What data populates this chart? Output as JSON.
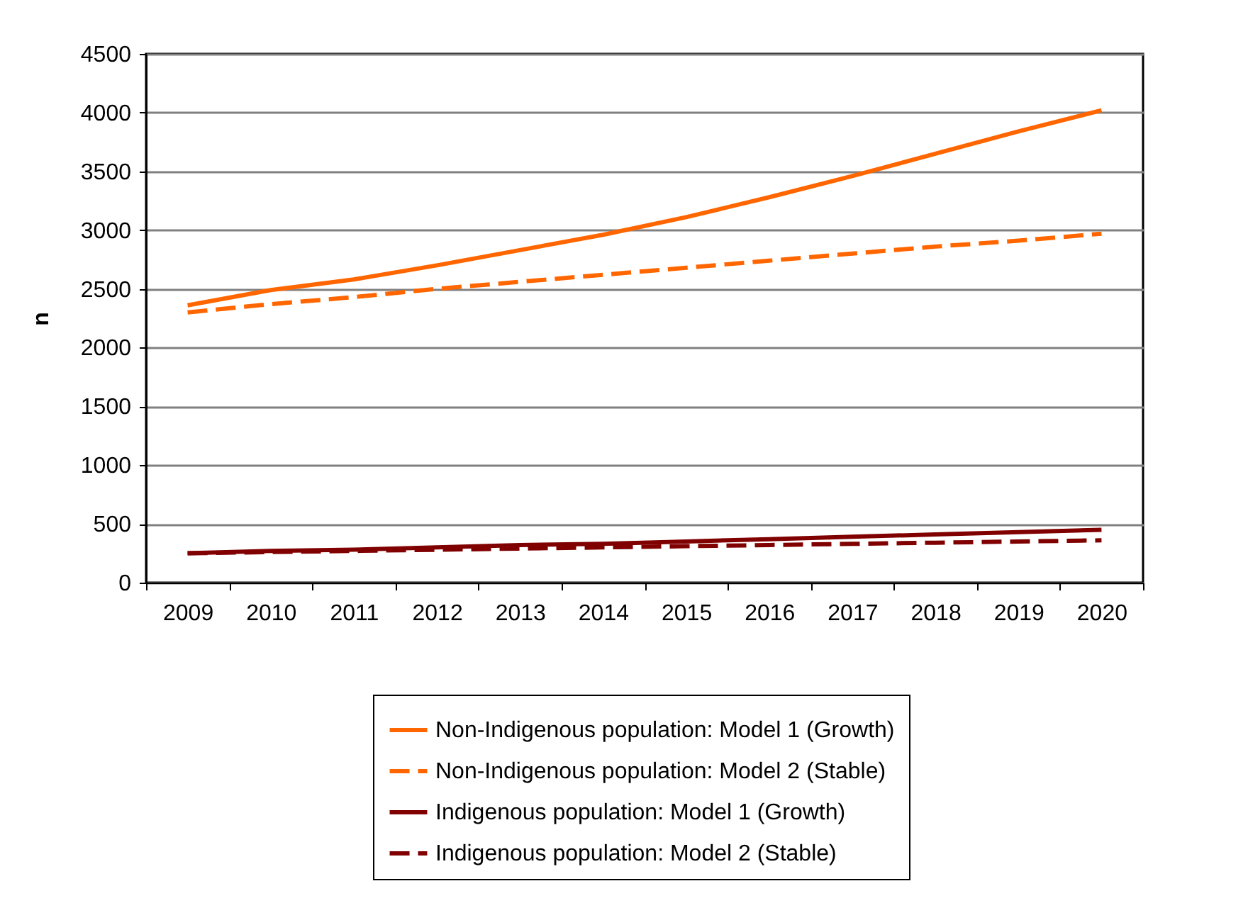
{
  "chart_data": {
    "type": "line",
    "ylabel": "n",
    "categories": [
      "2009",
      "2010",
      "2011",
      "2012",
      "2013",
      "2014",
      "2015",
      "2016",
      "2017",
      "2018",
      "2019",
      "2020"
    ],
    "ylim": [
      0,
      4500
    ],
    "yticks": [
      0,
      500,
      1000,
      1500,
      2000,
      2500,
      3000,
      3500,
      4000,
      4500
    ],
    "grid": "y",
    "legend": "bottom",
    "marker": "none",
    "series": [
      {
        "name": "Non-Indigenous population: Model 1 (Growth)",
        "color": "#ff6600",
        "line_style": "solid",
        "values": [
          2360,
          2490,
          2580,
          2700,
          2830,
          2960,
          3110,
          3280,
          3460,
          3650,
          3840,
          4020
        ]
      },
      {
        "name": "Non-Indigenous population: Model 2 (Stable)",
        "color": "#ff6600",
        "line_style": "dashed",
        "values": [
          2300,
          2370,
          2430,
          2500,
          2560,
          2620,
          2680,
          2740,
          2800,
          2860,
          2910,
          2970
        ]
      },
      {
        "name": "Indigenous population: Model 1 (Growth)",
        "color": "#800000",
        "line_style": "solid",
        "values": [
          250,
          270,
          280,
          300,
          320,
          330,
          350,
          370,
          390,
          410,
          430,
          450
        ]
      },
      {
        "name": "Indigenous population: Model 2 (Stable)",
        "color": "#800000",
        "line_style": "dashed",
        "values": [
          250,
          260,
          270,
          280,
          290,
          300,
          310,
          320,
          330,
          340,
          350,
          360
        ]
      }
    ]
  }
}
